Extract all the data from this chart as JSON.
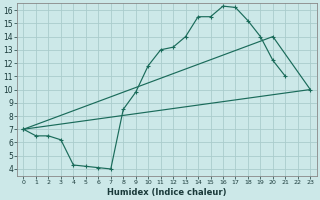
{
  "xlabel": "Humidex (Indice chaleur)",
  "bg_color": "#cce8e8",
  "grid_color": "#aacccc",
  "line_color": "#1a6b5a",
  "xlim": [
    -0.5,
    23.5
  ],
  "ylim": [
    3.5,
    16.5
  ],
  "yticks": [
    4,
    5,
    6,
    7,
    8,
    9,
    10,
    11,
    12,
    13,
    14,
    15,
    16
  ],
  "xticks": [
    0,
    1,
    2,
    3,
    4,
    5,
    6,
    7,
    8,
    9,
    10,
    11,
    12,
    13,
    14,
    15,
    16,
    17,
    18,
    19,
    20,
    21,
    22,
    23
  ],
  "line1_x": [
    0,
    1,
    2,
    3,
    4,
    5,
    6,
    7,
    8,
    9,
    10,
    11,
    12,
    13,
    14,
    15,
    16,
    17,
    18,
    19,
    20,
    21
  ],
  "line1_y": [
    7.0,
    6.5,
    6.5,
    6.2,
    4.3,
    4.2,
    4.1,
    4.0,
    8.5,
    9.8,
    11.8,
    13.0,
    13.2,
    14.0,
    15.5,
    15.5,
    16.3,
    16.2,
    15.2,
    14.0,
    12.2,
    11.0
  ],
  "line2_x": [
    0,
    20,
    23
  ],
  "line2_y": [
    7.0,
    14.0,
    10.0
  ],
  "line3_x": [
    0,
    23
  ],
  "line3_y": [
    7.0,
    10.0
  ],
  "xlabel_fontsize": 6,
  "tick_fontsize_x": 4.5,
  "tick_fontsize_y": 5.5
}
